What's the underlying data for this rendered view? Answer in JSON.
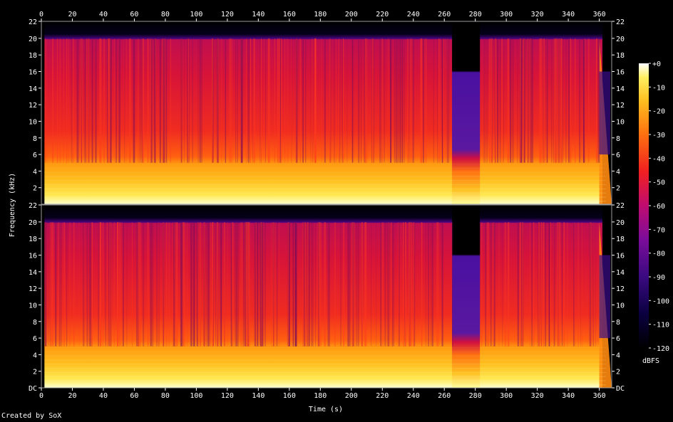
{
  "chart_data": {
    "type": "heatmap",
    "title": "",
    "xlabel": "Time (s)",
    "ylabel": "Frequency (kHz)",
    "x_ticks": [
      "0",
      "20",
      "40",
      "60",
      "80",
      "100",
      "120",
      "140",
      "160",
      "180",
      "200",
      "220",
      "240",
      "260",
      "280",
      "300",
      "320",
      "340",
      "360"
    ],
    "xlim": [
      0,
      368
    ],
    "channels": [
      {
        "y_ticks": [
          "22",
          "20",
          "18",
          "16",
          "14",
          "12",
          "10",
          "8",
          "6",
          "4",
          "2"
        ],
        "ylim": [
          0,
          22.05
        ]
      },
      {
        "y_ticks": [
          "22",
          "20",
          "18",
          "16",
          "14",
          "12",
          "10",
          "8",
          "6",
          "4",
          "2",
          "DC"
        ],
        "ylim": [
          0,
          22.05
        ]
      }
    ],
    "colorbar": {
      "unit": "dBFS",
      "ticks": [
        "+0",
        "-10",
        "-20",
        "-30",
        "-40",
        "-50",
        "-60",
        "-70",
        "-80",
        "-90",
        "-100",
        "-110",
        "-120"
      ],
      "range": [
        -120,
        0
      ]
    },
    "structure": {
      "lowpass_khz": 20,
      "lowpass_span_s": [
        2,
        362
      ],
      "gap_region_s": [
        265,
        283
      ],
      "gap_cutoff_khz": 16,
      "fade_out_s": [
        360,
        368
      ]
    },
    "colors": {
      "background": "#000000",
      "text": "#ffffff"
    }
  },
  "footer": {
    "credit": "Created by SoX"
  }
}
